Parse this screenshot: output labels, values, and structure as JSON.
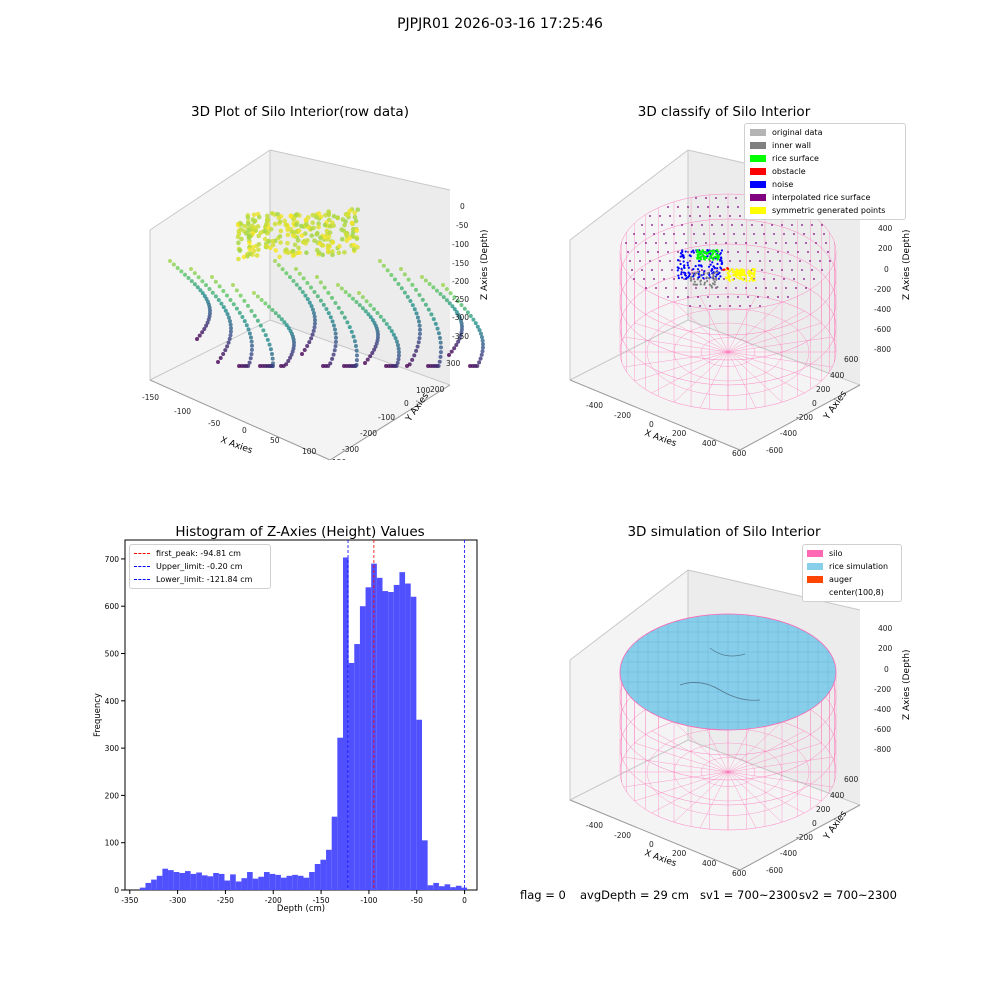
{
  "suptitle": "PJPJR01 2026-03-16 17:25:46",
  "panels": {
    "raw": {
      "title": "3D Plot of Silo Interior(row data)",
      "xlabel": "X Axies",
      "ylabel": "Y Axies",
      "zlabel": "Z Axies (Depth)",
      "xticks": [
        "-150",
        "-100",
        "-50",
        "0",
        "50",
        "100",
        "150"
      ],
      "yticks": [
        "300",
        "200",
        "100",
        "0",
        "-100",
        "-200",
        "-300"
      ],
      "zticks": [
        "0",
        "-50",
        "-100",
        "-150",
        "-200",
        "-250",
        "-300",
        "-350"
      ]
    },
    "classify": {
      "title": "3D classify of Silo Interior",
      "xlabel": "X Axies",
      "ylabel": "Y Axies",
      "zlabel": "Z Axies (Depth)",
      "xticks": [
        "-400",
        "-200",
        "0",
        "200",
        "400",
        "600"
      ],
      "yticks": [
        "600",
        "400",
        "200",
        "0",
        "-200",
        "-400",
        "-600"
      ],
      "zticks": [
        "400",
        "200",
        "0",
        "-200",
        "-400",
        "-600",
        "-800"
      ],
      "legend": [
        {
          "label": "original data",
          "color": "#b4b4b4"
        },
        {
          "label": "inner wall",
          "color": "#808080"
        },
        {
          "label": "rice surface",
          "color": "#00ff00"
        },
        {
          "label": "obstacle",
          "color": "#ff0000"
        },
        {
          "label": "noise",
          "color": "#0000ff"
        },
        {
          "label": "interpolated rice surface",
          "color": "#800080"
        },
        {
          "label": "symmetric generated points",
          "color": "#ffff00"
        }
      ]
    },
    "simulation": {
      "title": "3D simulation of Silo Interior",
      "xlabel": "X Axies",
      "ylabel": "Y Axies",
      "zlabel": "Z Axies (Depth)",
      "xticks": [
        "-400",
        "-200",
        "0",
        "200",
        "400",
        "600"
      ],
      "yticks": [
        "600",
        "400",
        "200",
        "0",
        "-200",
        "-400",
        "-600"
      ],
      "zticks": [
        "400",
        "200",
        "0",
        "-200",
        "-400",
        "-600",
        "-800"
      ],
      "legend": [
        {
          "label": "silo",
          "color": "#ff69b4"
        },
        {
          "label": "rice simulation",
          "color": "#87ceeb"
        },
        {
          "label": "auger",
          "color": "#ff4500"
        },
        {
          "label": "center(100,8)",
          "color": "#ffffff"
        }
      ]
    }
  },
  "footer": {
    "flag": "flag = 0",
    "avg_depth": "avgDepth = 29 cm",
    "sv1": "sv1 = 700~2300",
    "sv2": "sv2 = 700~2300"
  },
  "colors": {
    "bars": "#5050ff",
    "peak_line": "#ff0000",
    "limit_line": "#0000ff"
  },
  "chart_data": {
    "type": "bar",
    "title": "Histogram of Z-Axies (Height) Values",
    "xlabel": "Depth (cm)",
    "ylabel": "Frequency",
    "xlim": [
      -355,
      13
    ],
    "ylim": [
      0,
      740
    ],
    "xticks": [
      -350,
      -300,
      -250,
      -200,
      -150,
      -100,
      -50,
      0
    ],
    "yticks": [
      0,
      100,
      200,
      300,
      400,
      500,
      600,
      700
    ],
    "bin_width": 5.9,
    "bin_starts": [
      -339.5,
      -333.6,
      -327.7,
      -321.8,
      -315.9,
      -310.0,
      -304.1,
      -298.2,
      -292.3,
      -286.4,
      -280.5,
      -274.6,
      -268.7,
      -262.8,
      -256.9,
      -251.0,
      -245.1,
      -239.2,
      -233.3,
      -227.4,
      -221.5,
      -215.6,
      -209.7,
      -203.8,
      -197.9,
      -192.0,
      -186.1,
      -180.2,
      -174.3,
      -168.4,
      -162.5,
      -156.6,
      -150.7,
      -144.8,
      -138.9,
      -133.0,
      -127.1,
      -121.2,
      -115.3,
      -109.4,
      -103.5,
      -97.6,
      -91.7,
      -85.8,
      -79.9,
      -74.0,
      -68.1,
      -62.2,
      -56.3,
      -50.4,
      -44.5,
      -38.6,
      -32.7,
      -26.8,
      -20.9,
      -15.0,
      -9.1,
      -3.2
    ],
    "values": [
      5,
      15,
      22,
      30,
      45,
      42,
      38,
      36,
      40,
      34,
      37,
      31,
      29,
      36,
      34,
      20,
      33,
      18,
      25,
      38,
      24,
      28,
      38,
      34,
      32,
      26,
      30,
      32,
      30,
      26,
      38,
      55,
      64,
      85,
      155,
      322,
      703,
      480,
      520,
      600,
      640,
      690,
      660,
      632,
      630,
      645,
      672,
      648,
      620,
      360,
      105,
      10,
      15,
      8,
      12,
      6,
      9,
      5
    ],
    "lines": [
      {
        "label": "first_peak: -94.81 cm",
        "x": -94.81,
        "color": "#ff0000"
      },
      {
        "label": "Upper_limit: -0.20 cm",
        "x": -0.2,
        "color": "#0000ff"
      },
      {
        "label": "Lower_limit: -121.84 cm",
        "x": -121.84,
        "color": "#0000ff"
      }
    ]
  }
}
